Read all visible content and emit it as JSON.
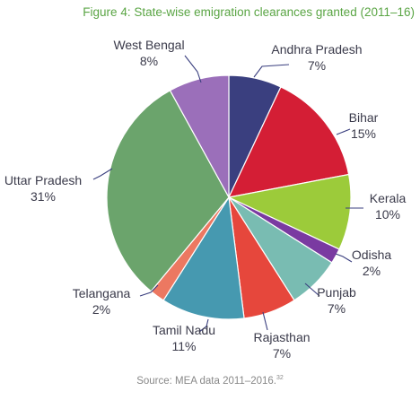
{
  "figure": {
    "title": "Figure 4: State-wise emigration clearances granted (2011–16)",
    "source_text": "Source: MEA data 2011–2016.",
    "source_ref": "32"
  },
  "chart_data": {
    "type": "pie",
    "slices": [
      {
        "label": "Andhra Pradesh",
        "value": 7,
        "value_label": "7%",
        "color": "#3a3f7f"
      },
      {
        "label": "Bihar",
        "value": 15,
        "value_label": "15%",
        "color": "#d41e35"
      },
      {
        "label": "Kerala",
        "value": 10,
        "value_label": "10%",
        "color": "#9ccb3a"
      },
      {
        "label": "Odisha",
        "value": 2,
        "value_label": "2%",
        "color": "#7a3aa1"
      },
      {
        "label": "Punjab",
        "value": 7,
        "value_label": "7%",
        "color": "#79bcb2"
      },
      {
        "label": "Rajasthan",
        "value": 7,
        "value_label": "7%",
        "color": "#e6473c"
      },
      {
        "label": "Tamil Nadu",
        "value": 11,
        "value_label": "11%",
        "color": "#4699b0"
      },
      {
        "label": "Telangana",
        "value": 2,
        "value_label": "2%",
        "color": "#ec7861"
      },
      {
        "label": "Uttar Pradesh",
        "value": 31,
        "value_label": "31%",
        "color": "#6ba46c"
      },
      {
        "label": "West Bengal",
        "value": 8,
        "value_label": "8%",
        "color": "#9b6fba"
      }
    ]
  },
  "colors": {
    "title": "#5aa544",
    "label_text": "#3a3a4a",
    "leader_line": "#3a3f7f",
    "source_text": "#888888"
  }
}
